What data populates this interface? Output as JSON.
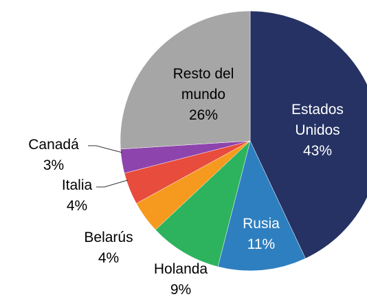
{
  "chart_data": {
    "type": "pie",
    "categories": [
      "Estados Unidos",
      "Rusia",
      "Holanda",
      "Belarús",
      "Italia",
      "Canadá",
      "Resto del mundo"
    ],
    "values": [
      43,
      11,
      9,
      4,
      4,
      3,
      26
    ],
    "value_labels": [
      "43%",
      "11%",
      "9%",
      "4%",
      "4%",
      "3%",
      "26%"
    ],
    "colors": [
      "#253263",
      "#2e7fc0",
      "#2db35d",
      "#f59a1e",
      "#e84c3d",
      "#8e44ad",
      "#a6a6a6"
    ]
  }
}
